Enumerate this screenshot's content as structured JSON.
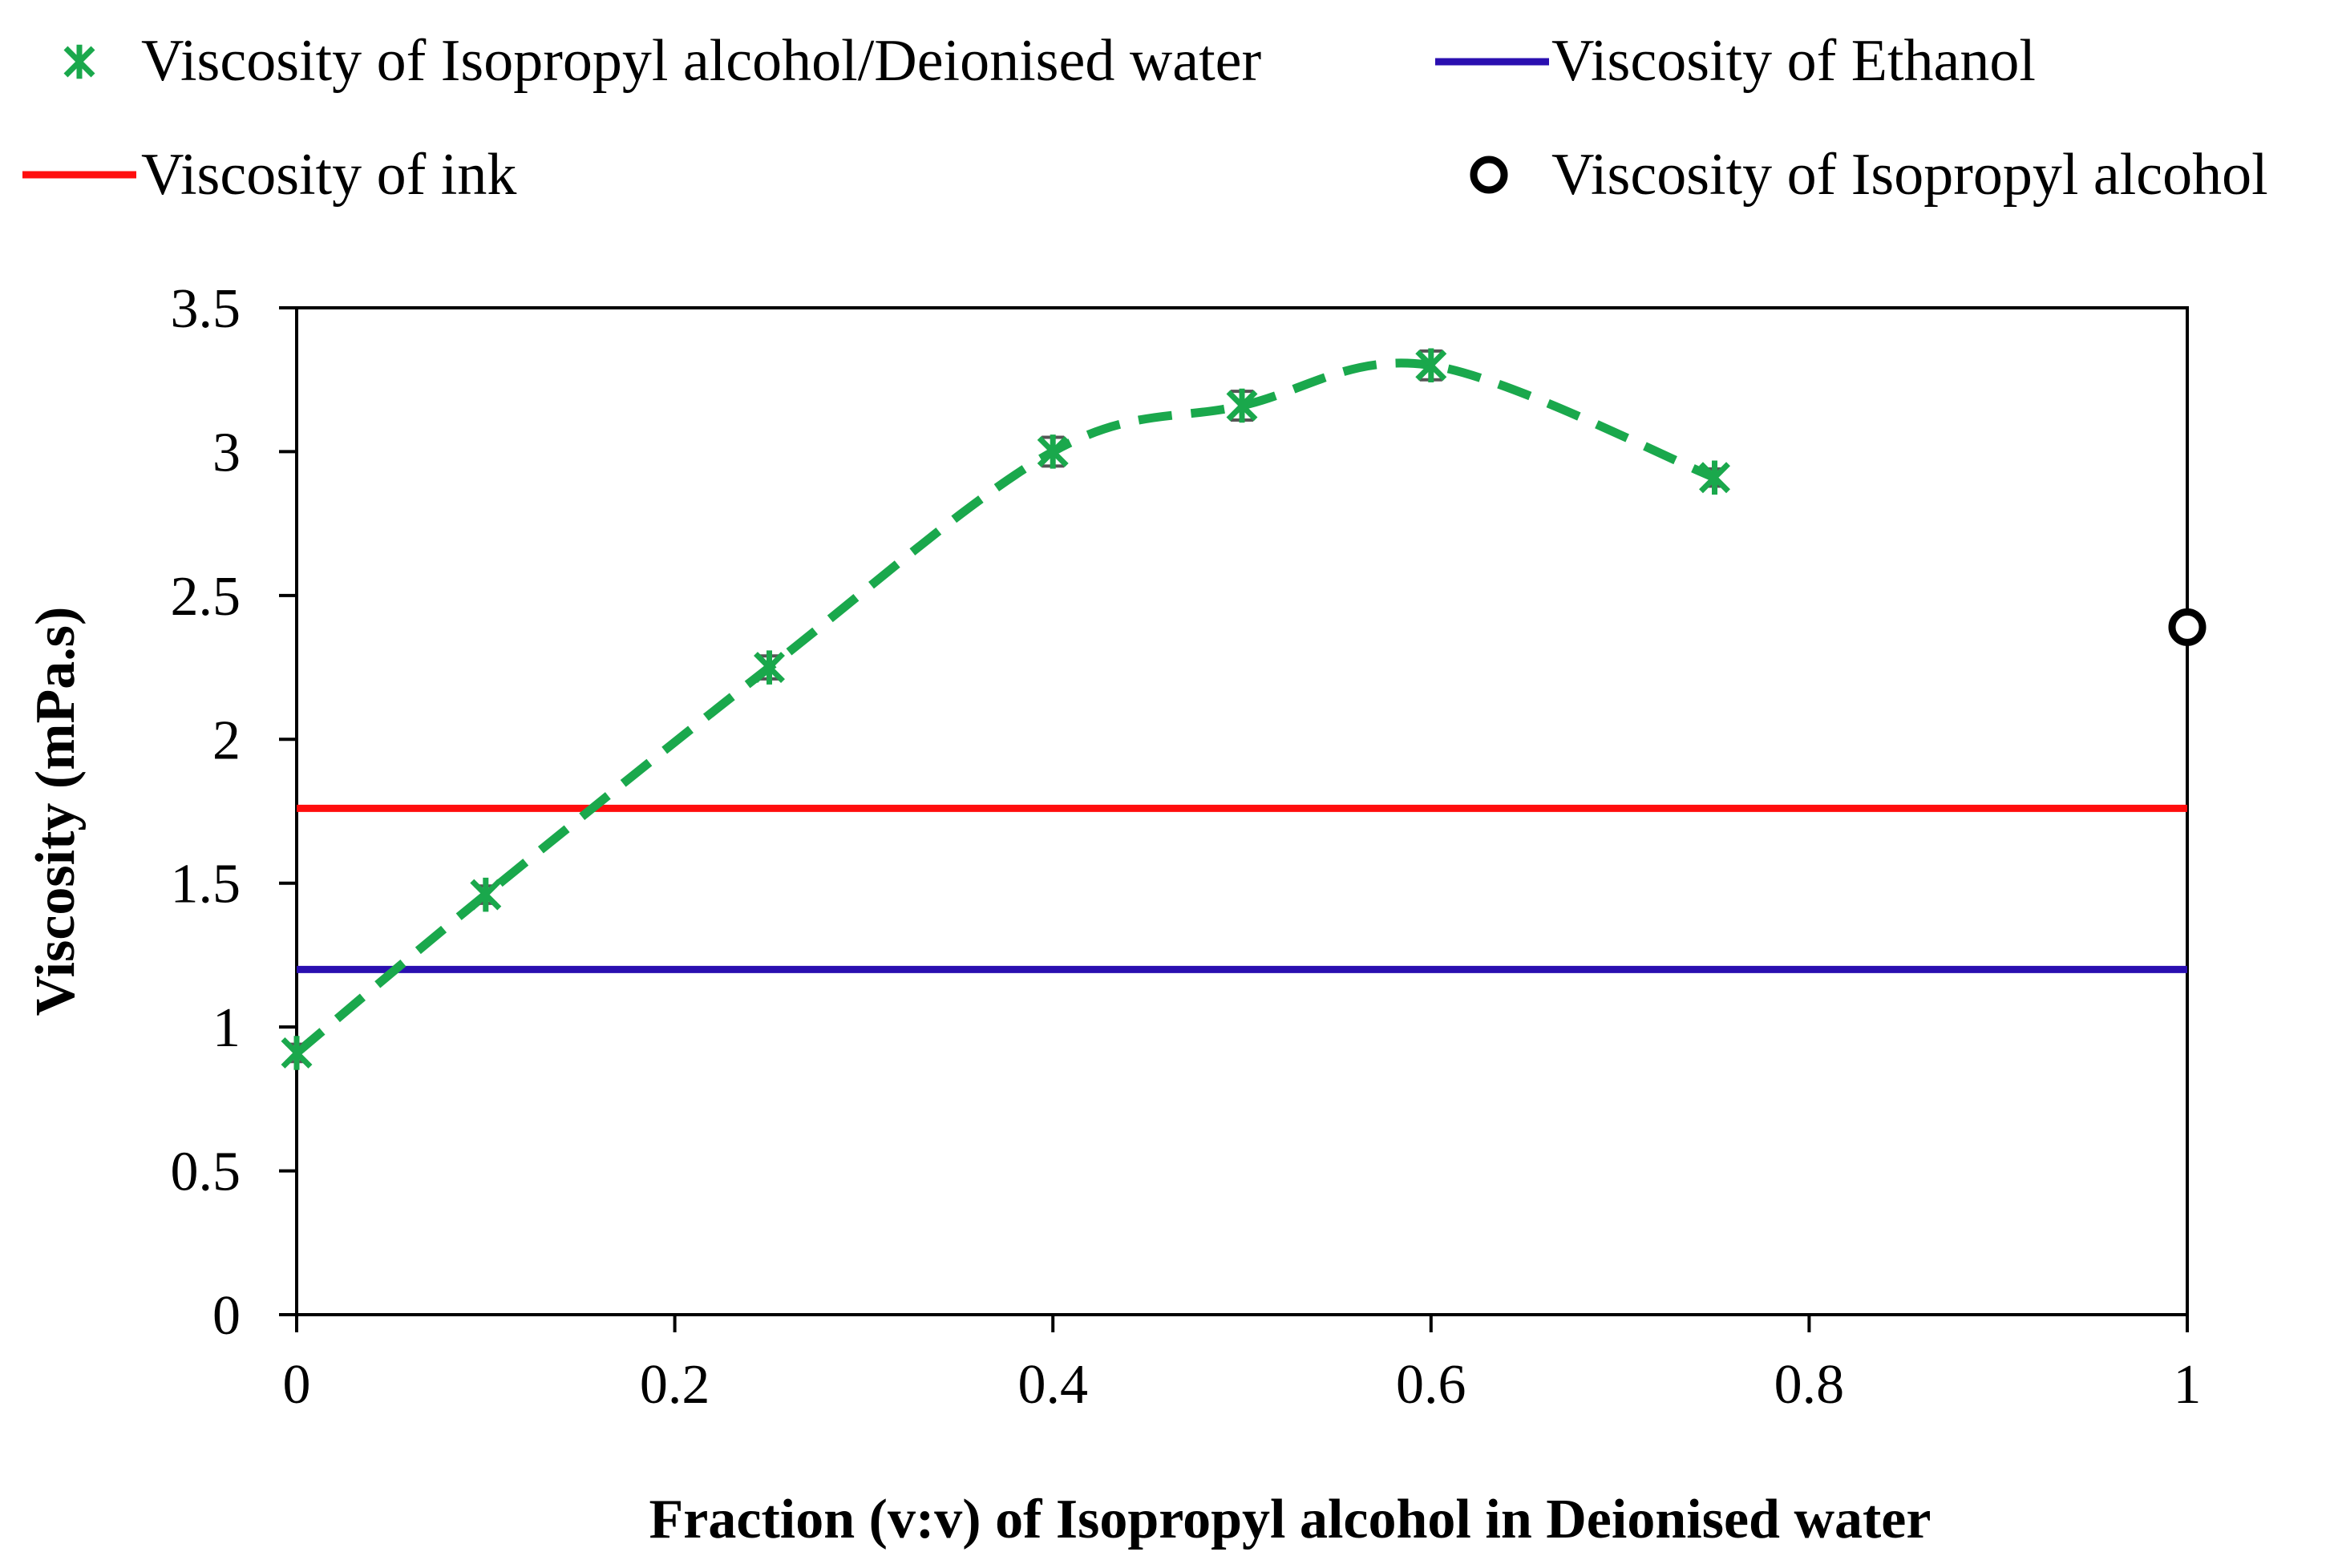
{
  "chart_data": {
    "type": "line",
    "title": "",
    "xlabel": "Fraction (v:v) of Isopropyl alcohol in Deionised water",
    "ylabel": "Viscosity (mPa.s)",
    "xlim": [
      0,
      1
    ],
    "ylim": [
      0,
      3.5
    ],
    "xticks": [
      0,
      0.2,
      0.4,
      0.6,
      0.8,
      1
    ],
    "xtick_labels": [
      "0",
      "0.2",
      "0.4",
      "0.6",
      "0.8",
      "1"
    ],
    "yticks": [
      0,
      0.5,
      1,
      1.5,
      2,
      2.5,
      3,
      3.5
    ],
    "ytick_labels": [
      "0",
      "0.5",
      "1",
      "1.5",
      "2",
      "2.5",
      "3",
      "3.5"
    ],
    "grid": false,
    "legend_position": "top",
    "series": [
      {
        "name": "Viscosity of Isopropyl alcohol/Deionised water",
        "kind": "dashed-line-with-star-markers",
        "color": "#1aa84c",
        "x": [
          0,
          0.1,
          0.25,
          0.4,
          0.5,
          0.6,
          0.75
        ],
        "y": [
          0.91,
          1.46,
          2.25,
          3.0,
          3.16,
          3.3,
          2.91
        ],
        "error": [
          0.03,
          0.03,
          0.04,
          0.05,
          0.05,
          0.05,
          0.03
        ]
      },
      {
        "name": "Viscosity of Ethanol",
        "kind": "horizontal-line",
        "color": "#2a0fb0",
        "y": 1.2
      },
      {
        "name": "Viscosity of ink",
        "kind": "horizontal-line",
        "color": "#ff0d0d",
        "y": 1.76
      },
      {
        "name": "Viscosity of Isopropyl alcohol",
        "kind": "single-point-open-circle",
        "color": "#000000",
        "x": [
          1
        ],
        "y": [
          2.39
        ]
      }
    ]
  }
}
